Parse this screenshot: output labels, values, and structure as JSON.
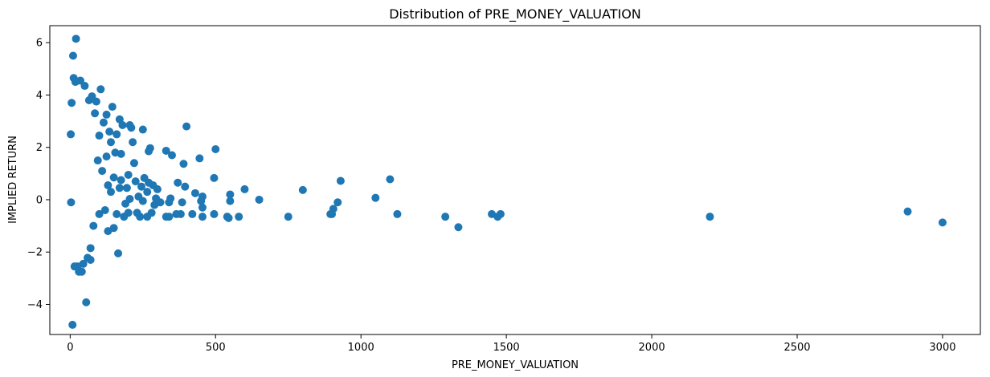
{
  "chart_data": {
    "type": "scatter",
    "title": "Distribution of PRE_MONEY_VALUATION",
    "xlabel": "PRE_MONEY_VALUATION",
    "ylabel": "IMPLIED RETURN",
    "xlim": [
      -70,
      3130
    ],
    "ylim": [
      -5.15,
      6.65
    ],
    "xticks": [
      0,
      500,
      1000,
      1500,
      2000,
      2500,
      3000
    ],
    "xtick_labels": [
      "0",
      "500",
      "1000",
      "1500",
      "2000",
      "2500",
      "3000"
    ],
    "yticks": [
      -4,
      -2,
      0,
      2,
      4,
      6
    ],
    "ytick_labels": [
      "−4",
      "−2",
      "0",
      "2",
      "4",
      "6"
    ],
    "grid": false,
    "legend": "none",
    "marker_color": "#1f77b4",
    "series": [
      {
        "points": [
          [
            3000,
            -0.87
          ],
          [
            2880,
            -0.45
          ],
          [
            2200,
            -0.65
          ],
          [
            1480,
            -0.55
          ],
          [
            1470,
            -0.65
          ],
          [
            1450,
            -0.55
          ],
          [
            1335,
            -1.05
          ],
          [
            1290,
            -0.65
          ],
          [
            1125,
            -0.55
          ],
          [
            1100,
            0.78
          ],
          [
            1050,
            0.07
          ],
          [
            930,
            0.72
          ],
          [
            920,
            -0.1
          ],
          [
            905,
            -0.35
          ],
          [
            900,
            -0.55
          ],
          [
            895,
            -0.55
          ],
          [
            800,
            0.37
          ],
          [
            750,
            -0.65
          ],
          [
            650,
            0.0
          ],
          [
            600,
            0.4
          ],
          [
            580,
            -0.65
          ],
          [
            550,
            0.2
          ],
          [
            550,
            -0.05
          ],
          [
            545,
            -0.7
          ],
          [
            540,
            -0.65
          ],
          [
            500,
            1.93
          ],
          [
            495,
            0.83
          ],
          [
            495,
            -0.55
          ],
          [
            455,
            0.12
          ],
          [
            455,
            -0.3
          ],
          [
            455,
            -0.65
          ],
          [
            450,
            -0.05
          ],
          [
            445,
            1.58
          ],
          [
            430,
            0.25
          ],
          [
            420,
            -0.55
          ],
          [
            400,
            2.8
          ],
          [
            395,
            0.5
          ],
          [
            390,
            1.37
          ],
          [
            385,
            -0.1
          ],
          [
            380,
            -0.55
          ],
          [
            370,
            0.65
          ],
          [
            365,
            -0.55
          ],
          [
            350,
            1.7
          ],
          [
            345,
            0.05
          ],
          [
            340,
            -0.1
          ],
          [
            340,
            -0.65
          ],
          [
            330,
            1.87
          ],
          [
            330,
            -0.65
          ],
          [
            310,
            -0.1
          ],
          [
            300,
            0.4
          ],
          [
            295,
            0.05
          ],
          [
            290,
            -0.2
          ],
          [
            285,
            0.55
          ],
          [
            280,
            -0.5
          ],
          [
            275,
            1.97
          ],
          [
            270,
            1.85
          ],
          [
            270,
            0.65
          ],
          [
            265,
            0.3
          ],
          [
            265,
            -0.65
          ],
          [
            255,
            0.83
          ],
          [
            250,
            2.68
          ],
          [
            250,
            -0.05
          ],
          [
            245,
            0.5
          ],
          [
            240,
            -0.65
          ],
          [
            235,
            0.12
          ],
          [
            230,
            -0.5
          ],
          [
            225,
            0.7
          ],
          [
            220,
            1.4
          ],
          [
            215,
            2.2
          ],
          [
            210,
            2.75
          ],
          [
            205,
            2.85
          ],
          [
            205,
            0.03
          ],
          [
            200,
            0.95
          ],
          [
            200,
            -0.5
          ],
          [
            195,
            0.45
          ],
          [
            190,
            -0.15
          ],
          [
            185,
            -0.65
          ],
          [
            180,
            2.85
          ],
          [
            175,
            1.75
          ],
          [
            175,
            0.75
          ],
          [
            170,
            3.07
          ],
          [
            170,
            0.45
          ],
          [
            165,
            -2.05
          ],
          [
            160,
            2.5
          ],
          [
            160,
            -0.55
          ],
          [
            155,
            1.8
          ],
          [
            150,
            0.85
          ],
          [
            150,
            -1.08
          ],
          [
            145,
            3.55
          ],
          [
            140,
            2.2
          ],
          [
            140,
            0.3
          ],
          [
            135,
            2.6
          ],
          [
            130,
            -1.2
          ],
          [
            130,
            0.55
          ],
          [
            125,
            3.25
          ],
          [
            125,
            1.65
          ],
          [
            120,
            -0.4
          ],
          [
            115,
            2.95
          ],
          [
            110,
            1.1
          ],
          [
            105,
            4.22
          ],
          [
            100,
            2.45
          ],
          [
            100,
            -0.55
          ],
          [
            95,
            1.5
          ],
          [
            90,
            3.75
          ],
          [
            85,
            3.3
          ],
          [
            80,
            -1.0
          ],
          [
            75,
            3.95
          ],
          [
            70,
            -1.85
          ],
          [
            70,
            -2.3
          ],
          [
            65,
            3.8
          ],
          [
            60,
            -2.22
          ],
          [
            55,
            -3.92
          ],
          [
            50,
            4.35
          ],
          [
            45,
            -2.45
          ],
          [
            40,
            -2.75
          ],
          [
            35,
            4.55
          ],
          [
            30,
            -2.75
          ],
          [
            25,
            -2.55
          ],
          [
            20,
            6.15
          ],
          [
            18,
            4.5
          ],
          [
            15,
            -2.55
          ],
          [
            12,
            4.65
          ],
          [
            10,
            5.5
          ],
          [
            8,
            -4.78
          ],
          [
            5,
            3.7
          ],
          [
            3,
            -0.1
          ],
          [
            2,
            2.5
          ]
        ]
      }
    ]
  }
}
